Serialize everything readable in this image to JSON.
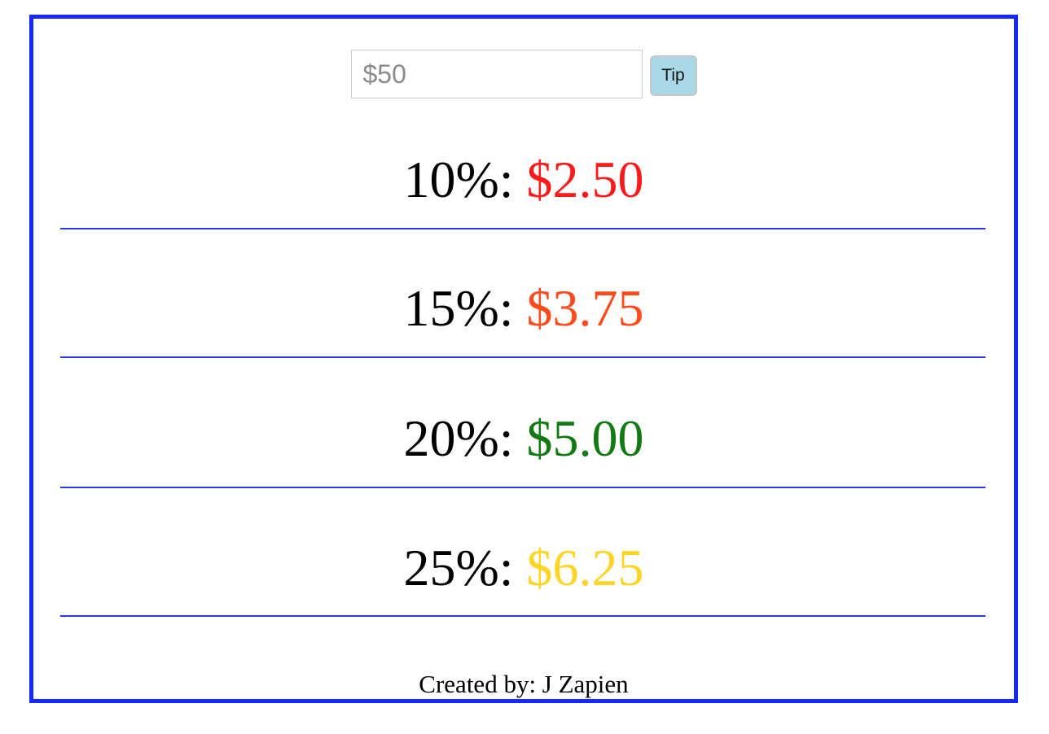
{
  "input": {
    "placeholder": "$50"
  },
  "button": {
    "label": "Tip"
  },
  "tips": [
    {
      "percent": "10%",
      "separator": ":",
      "amount": "$2.50",
      "color": "#ff1a1a"
    },
    {
      "percent": "15%",
      "separator": ":",
      "amount": "$3.75",
      "color": "#ff4a1c"
    },
    {
      "percent": "20%",
      "separator": ":",
      "amount": "$5.00",
      "color": "#127a12"
    },
    {
      "percent": "25%",
      "separator": ":",
      "amount": "$6.25",
      "color": "#ffd424"
    }
  ],
  "footer": {
    "text": "Created by: J Zapien"
  },
  "colors": {
    "frame_border": "#1528ff",
    "divider": "#2a3ce0",
    "button_bg": "#a9d9e6"
  }
}
